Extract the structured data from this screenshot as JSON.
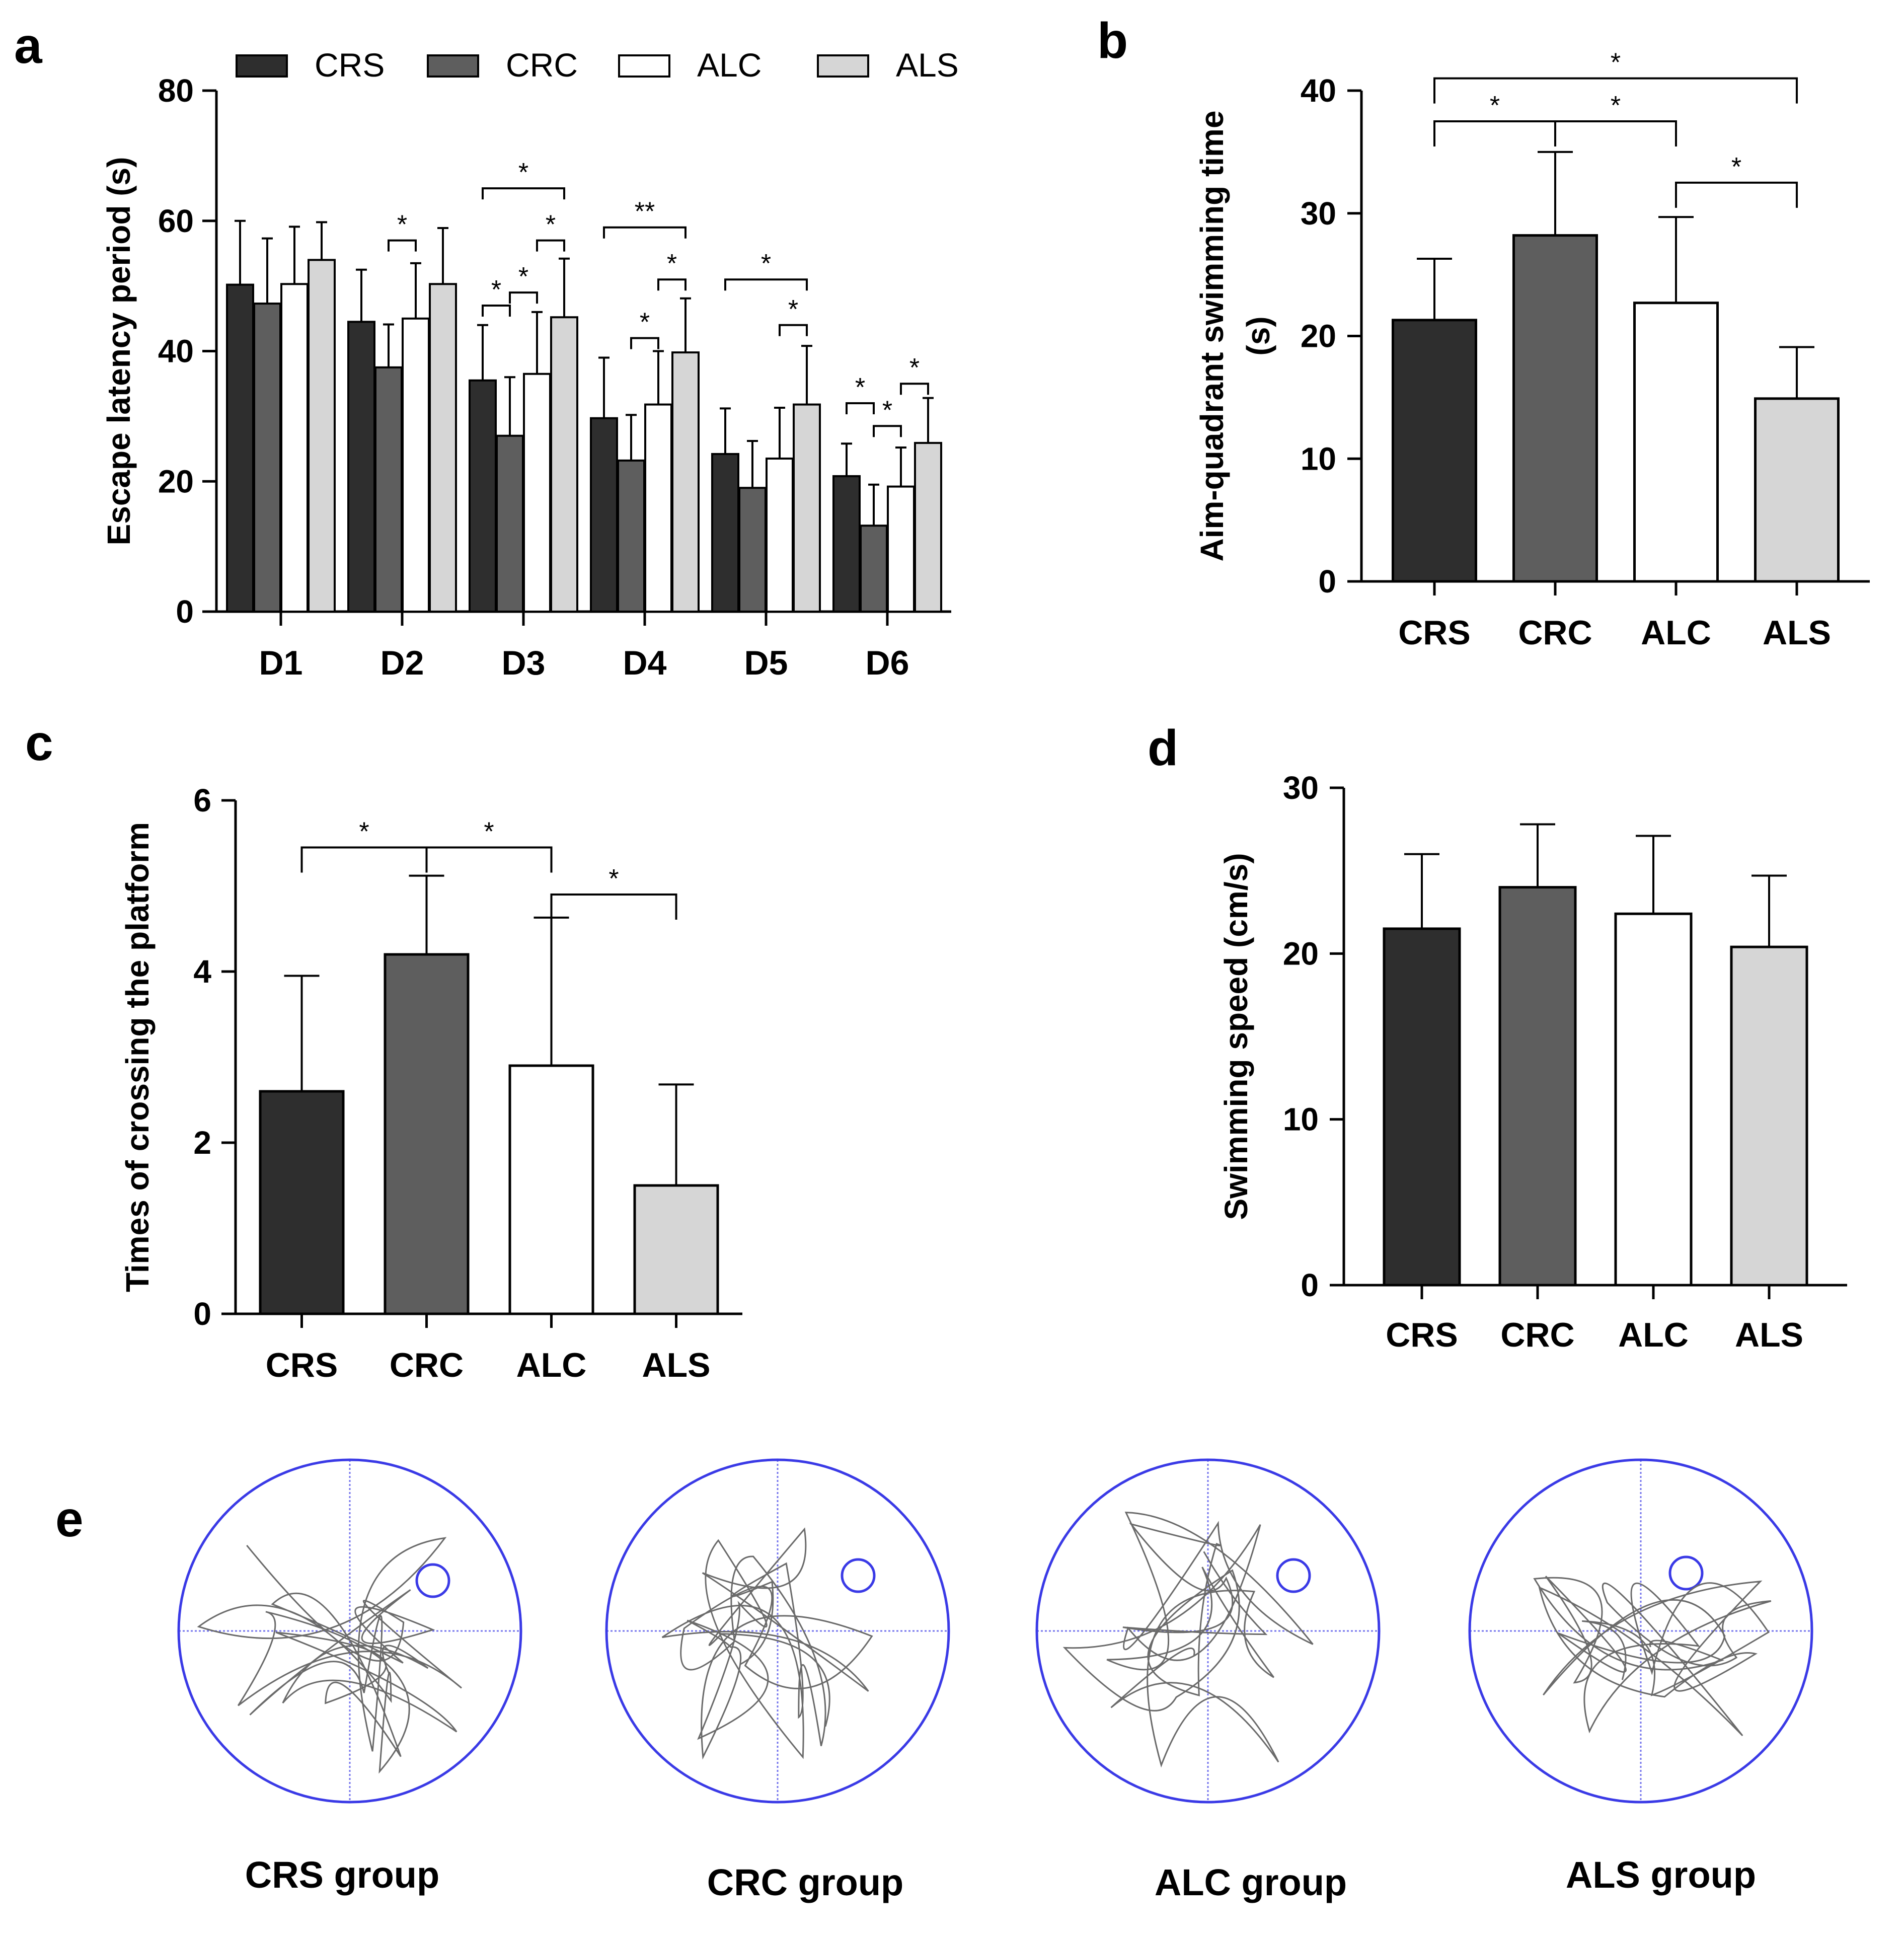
{
  "colors": {
    "CRS": "#2e2e2e",
    "CRC": "#5e5e5e",
    "ALC": "#ffffff",
    "ALS": "#d6d6d6",
    "axis": "#000000",
    "maze": "#3a3ae6",
    "trace": "#6a6a6a"
  },
  "chart_data": [
    {
      "id": "a",
      "panel_label": "a",
      "type": "bar",
      "ylabel": "Escape latency period (s)",
      "ylim": [
        0,
        80
      ],
      "yticks": [
        0,
        20,
        40,
        60,
        80
      ],
      "legend": [
        "CRS",
        "CRC",
        "ALC",
        "ALS"
      ],
      "categories": [
        "D1",
        "D2",
        "D3",
        "D4",
        "D5",
        "D6"
      ],
      "series": [
        {
          "name": "CRS",
          "values": [
            50.2,
            44.5,
            35.5,
            29.7,
            24.2,
            20.8
          ],
          "errors": [
            9.8,
            8.0,
            8.5,
            9.3,
            7.0,
            5.0
          ]
        },
        {
          "name": "CRC",
          "values": [
            47.3,
            37.5,
            27.0,
            23.2,
            19.0,
            13.2
          ],
          "errors": [
            10.0,
            6.6,
            9.0,
            7.0,
            7.2,
            6.3
          ]
        },
        {
          "name": "ALC",
          "values": [
            50.3,
            45.0,
            36.5,
            31.8,
            23.5,
            19.2
          ],
          "errors": [
            8.8,
            8.5,
            9.5,
            8.2,
            7.8,
            6.0
          ]
        },
        {
          "name": "ALS",
          "values": [
            54.0,
            50.3,
            45.2,
            39.8,
            31.8,
            25.9
          ],
          "errors": [
            5.8,
            8.6,
            9.0,
            8.3,
            9.0,
            6.9
          ]
        }
      ],
      "annotations": [
        {
          "category": "D2",
          "from": "CRC",
          "to": "ALC",
          "label": "*",
          "level": 57
        },
        {
          "category": "D3",
          "from": "CRS",
          "to": "ALS",
          "label": "*",
          "level": 65
        },
        {
          "category": "D3",
          "from": "CRS",
          "to": "CRC",
          "label": "*",
          "level": 47
        },
        {
          "category": "D3",
          "from": "CRC",
          "to": "ALC",
          "label": "*",
          "level": 49
        },
        {
          "category": "D3",
          "from": "ALC",
          "to": "ALS",
          "label": "*",
          "level": 57
        },
        {
          "category": "D4",
          "from": "CRS",
          "to": "ALS",
          "label": "**",
          "level": 59
        },
        {
          "category": "D4",
          "from": "CRC",
          "to": "ALC",
          "label": "*",
          "level": 42
        },
        {
          "category": "D4",
          "from": "ALC",
          "to": "ALS",
          "label": "*",
          "level": 51
        },
        {
          "category": "D5",
          "from": "CRS",
          "to": "ALS",
          "label": "*",
          "level": 51
        },
        {
          "category": "D5",
          "from": "ALC",
          "to": "ALS",
          "label": "*",
          "level": 44
        },
        {
          "category": "D6",
          "from": "CRS",
          "to": "CRC",
          "label": "*",
          "level": 32
        },
        {
          "category": "D6",
          "from": "CRC",
          "to": "ALC",
          "label": "*",
          "level": 28.5
        },
        {
          "category": "D6",
          "from": "ALC",
          "to": "ALS",
          "label": "*",
          "level": 35
        }
      ]
    },
    {
      "id": "b",
      "panel_label": "b",
      "type": "bar",
      "ylabel_lines": [
        "Aim-quadrant swimming time",
        "(s)"
      ],
      "ylim": [
        0,
        40
      ],
      "yticks": [
        0,
        10,
        20,
        30,
        40
      ],
      "categories": [
        "CRS",
        "CRC",
        "ALC",
        "ALS"
      ],
      "values": [
        21.3,
        28.2,
        22.7,
        14.9
      ],
      "errors": [
        5.0,
        6.8,
        7.0,
        4.2
      ],
      "annotations": [
        {
          "from": "CRS",
          "to": "ALS",
          "label": "*",
          "level": 41
        },
        {
          "from": "CRS",
          "to": "CRC",
          "label": "*",
          "level": 37.5
        },
        {
          "from": "CRC",
          "to": "ALC",
          "label": "*",
          "level": 37.5
        },
        {
          "from": "ALC",
          "to": "ALS",
          "label": "*",
          "level": 32.5
        }
      ]
    },
    {
      "id": "c",
      "panel_label": "c",
      "type": "bar",
      "ylabel": "Times of crossing the platform",
      "ylim": [
        0,
        6
      ],
      "yticks": [
        0,
        2,
        4,
        6
      ],
      "categories": [
        "CRS",
        "CRC",
        "ALC",
        "ALS"
      ],
      "values": [
        2.6,
        4.2,
        2.9,
        1.5
      ],
      "errors": [
        1.35,
        0.92,
        1.73,
        1.18
      ],
      "annotations": [
        {
          "from": "CRS",
          "to": "CRC",
          "label": "*",
          "level": 5.45
        },
        {
          "from": "CRC",
          "to": "ALC",
          "label": "*",
          "level": 5.45
        },
        {
          "from": "ALC",
          "to": "ALS",
          "label": "*",
          "level": 4.9
        }
      ]
    },
    {
      "id": "d",
      "panel_label": "d",
      "type": "bar",
      "ylabel": "Swimming speed (cm/s)",
      "ylim": [
        0,
        30
      ],
      "yticks": [
        0,
        10,
        20,
        30
      ],
      "categories": [
        "CRS",
        "CRC",
        "ALC",
        "ALS"
      ],
      "values": [
        21.5,
        24.0,
        22.4,
        20.4
      ],
      "errors": [
        4.5,
        3.8,
        4.7,
        4.3
      ],
      "annotations": []
    }
  ],
  "panel_e": {
    "panel_label": "e",
    "groups": [
      {
        "name": "CRS",
        "label": "CRS group"
      },
      {
        "name": "CRC",
        "label": "CRC group"
      },
      {
        "name": "ALC",
        "label": "ALC group"
      },
      {
        "name": "ALS",
        "label": "ALS group"
      }
    ]
  }
}
